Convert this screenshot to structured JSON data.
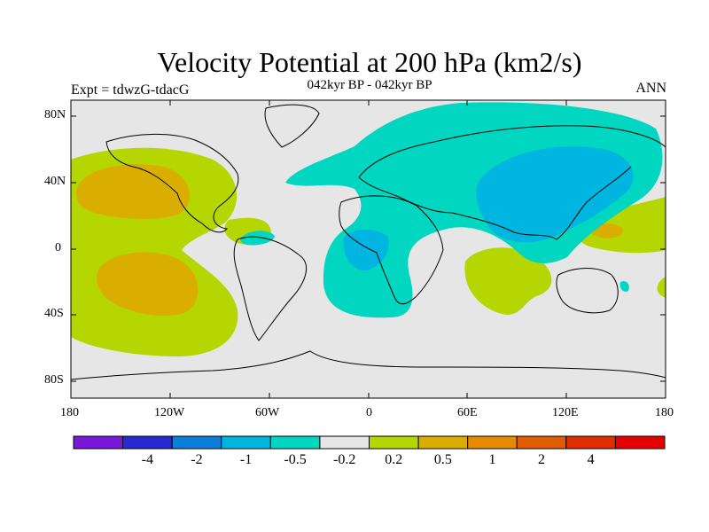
{
  "title": "Velocity Potential at 200 hPa (km2/s)",
  "subtitle": "042kyr BP - 042kyr BP",
  "left_label": "Expt = tdwzG-tdacG",
  "right_label": "ANN",
  "map": {
    "lat_ticks": [
      "80N",
      "40N",
      "0",
      "40S",
      "80S"
    ],
    "lon_ticks": [
      "180",
      "120W",
      "60W",
      "0",
      "60E",
      "120E",
      "180"
    ],
    "lon_range": [
      -180,
      180
    ],
    "lat_range": [
      -90,
      90
    ],
    "background_color": "#e6e6e6"
  },
  "colorbar": {
    "colors": [
      "#7a17d9",
      "#2929d4",
      "#0a7ed9",
      "#00b5e0",
      "#00d6c0",
      "#e6e6e6",
      "#b5d600",
      "#d9ae00",
      "#e68a00",
      "#e05c00",
      "#e02e00",
      "#e80000"
    ],
    "labels": [
      "-4",
      "-2",
      "-1",
      "-0.5",
      "-0.2",
      "0.2",
      "0.5",
      "1",
      "2",
      "4"
    ]
  }
}
